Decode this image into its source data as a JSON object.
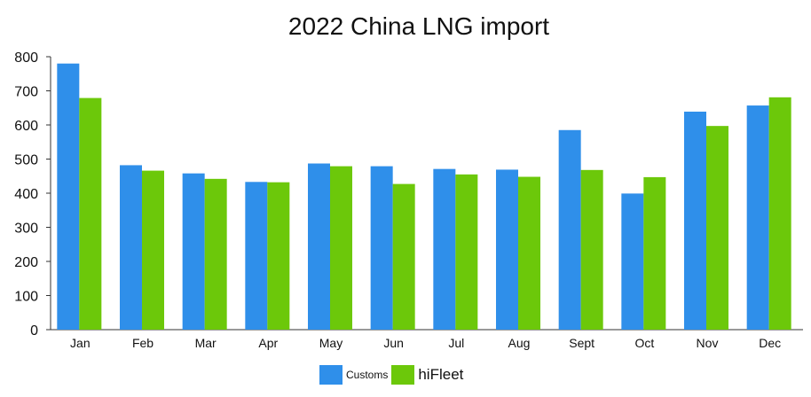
{
  "chart_data": {
    "type": "bar",
    "title": "2022 China LNG import",
    "categories": [
      "Jan",
      "Feb",
      "Mar",
      "Apr",
      "May",
      "Jun",
      "Jul",
      "Aug",
      "Sept",
      "Oct",
      "Nov",
      "Dec"
    ],
    "series": [
      {
        "name": "Customs",
        "color": "#2f8fea",
        "values": [
          780,
          482,
          458,
          433,
          487,
          479,
          471,
          469,
          585,
          399,
          639,
          657
        ]
      },
      {
        "name": "hiFleet",
        "color": "#6cc80a",
        "values": [
          679,
          466,
          442,
          432,
          479,
          427,
          455,
          448,
          468,
          447,
          597,
          681
        ]
      }
    ],
    "ylim": [
      0,
      800
    ],
    "yticks": [
      0,
      100,
      200,
      300,
      400,
      500,
      600,
      700,
      800
    ],
    "xlabel": "",
    "ylabel": "",
    "grid": false,
    "legend_position": "bottom-center"
  }
}
